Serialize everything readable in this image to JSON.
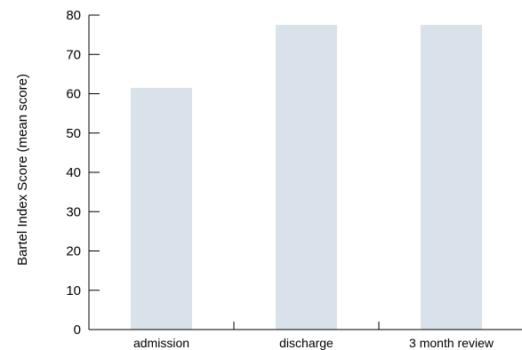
{
  "chart_data": {
    "type": "bar",
    "categories": [
      "admission",
      "discharge",
      "3 month review"
    ],
    "values": [
      61.5,
      77.5,
      77.5
    ],
    "title": "",
    "xlabel": "",
    "ylabel": "Bartel Index Score (mean score)",
    "ylim": [
      0,
      80
    ],
    "yticks": [
      0,
      10,
      20,
      30,
      40,
      50,
      60,
      70,
      80
    ],
    "grid": false,
    "legend": "none",
    "bar_color": "#d9e1ea",
    "axis_color": "#000000"
  }
}
